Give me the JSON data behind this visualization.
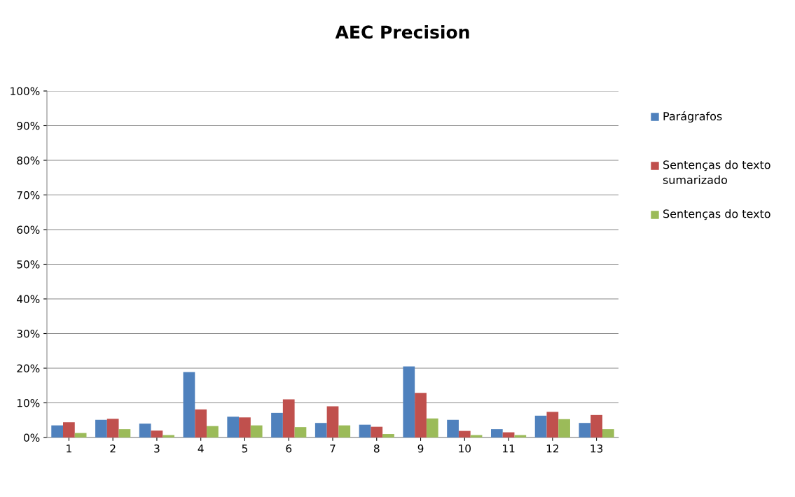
{
  "chart_data": {
    "type": "bar",
    "title": "AEC Precision",
    "categories": [
      "1",
      "2",
      "3",
      "4",
      "5",
      "6",
      "7",
      "8",
      "9",
      "10",
      "11",
      "12",
      "13"
    ],
    "series": [
      {
        "name": "Parágrafos",
        "color": "#4f81bd",
        "values": [
          3.5,
          5.1,
          4.0,
          18.9,
          6.0,
          7.1,
          4.2,
          3.7,
          20.5,
          5.1,
          2.4,
          6.3,
          4.2
        ]
      },
      {
        "name": "Sentenças do texto sumarizado",
        "color": "#c0504d",
        "values": [
          4.4,
          5.4,
          2.0,
          8.1,
          5.8,
          11.0,
          9.0,
          3.1,
          12.9,
          1.9,
          1.5,
          7.4,
          6.5
        ]
      },
      {
        "name": "Sentenças do texto",
        "color": "#9bbb59",
        "values": [
          1.3,
          2.4,
          0.7,
          3.3,
          3.5,
          3.0,
          3.5,
          1.0,
          5.5,
          0.7,
          0.7,
          5.3,
          2.4
        ]
      }
    ],
    "ylim": [
      0,
      100
    ],
    "yticks": [
      {
        "value": 0,
        "label": "0%"
      },
      {
        "value": 10,
        "label": "10%"
      },
      {
        "value": 20,
        "label": "20%"
      },
      {
        "value": 30,
        "label": "30%"
      },
      {
        "value": 40,
        "label": "40%"
      },
      {
        "value": 50,
        "label": "50%"
      },
      {
        "value": 60,
        "label": "60%"
      },
      {
        "value": 70,
        "label": "70%"
      },
      {
        "value": 80,
        "label": "80%"
      },
      {
        "value": 90,
        "label": "90%"
      },
      {
        "value": 100,
        "label": "100%"
      }
    ],
    "grid": "y",
    "legend": "right"
  }
}
